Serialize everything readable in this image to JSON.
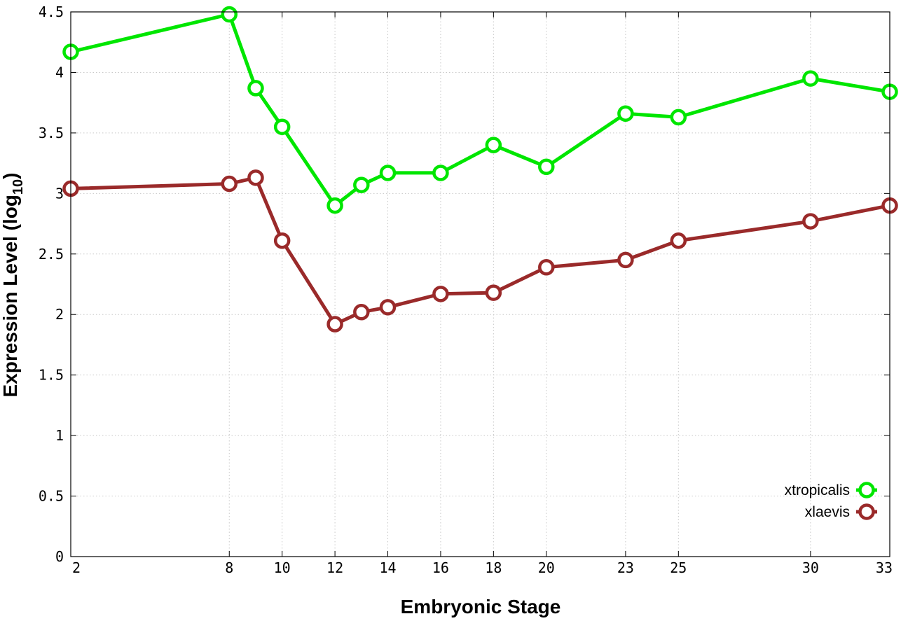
{
  "chart_data": {
    "type": "line",
    "title": "",
    "xlabel": "Embryonic Stage",
    "ylabel": "Expression Level (log",
    "ylabel_sub": "10",
    "ylabel_close": ")",
    "xlim": [
      2,
      33
    ],
    "ylim": [
      0,
      4.5
    ],
    "x_ticks": [
      2,
      8,
      10,
      12,
      14,
      16,
      18,
      20,
      23,
      25,
      30,
      33
    ],
    "x_tick_labels": [
      "2",
      "8",
      "10",
      "12",
      "14",
      "16",
      "18",
      "20",
      "23",
      "25",
      "30",
      "33"
    ],
    "y_ticks": [
      0,
      0.5,
      1,
      1.5,
      2,
      2.5,
      3,
      3.5,
      4,
      4.5
    ],
    "y_tick_labels": [
      "0",
      "0.5",
      "1",
      "1.5",
      "2",
      "2.5",
      "3",
      "3.5",
      "4",
      "4.5"
    ],
    "grid": true,
    "legend_position": "bottom-right",
    "x": [
      2,
      8,
      9,
      10,
      12,
      13,
      14,
      16,
      18,
      20,
      23,
      25,
      30,
      33
    ],
    "series": [
      {
        "name": "xtropicalis",
        "color": "#00e600",
        "values": [
          4.17,
          4.48,
          3.87,
          3.55,
          2.9,
          3.07,
          3.17,
          3.17,
          3.4,
          3.22,
          3.66,
          3.63,
          3.95,
          3.84
        ]
      },
      {
        "name": "xlaevis",
        "color": "#9a2a2a",
        "values": [
          3.04,
          3.08,
          3.13,
          2.61,
          1.92,
          2.02,
          2.06,
          2.17,
          2.18,
          2.39,
          2.45,
          2.61,
          2.77,
          2.9
        ]
      }
    ]
  }
}
